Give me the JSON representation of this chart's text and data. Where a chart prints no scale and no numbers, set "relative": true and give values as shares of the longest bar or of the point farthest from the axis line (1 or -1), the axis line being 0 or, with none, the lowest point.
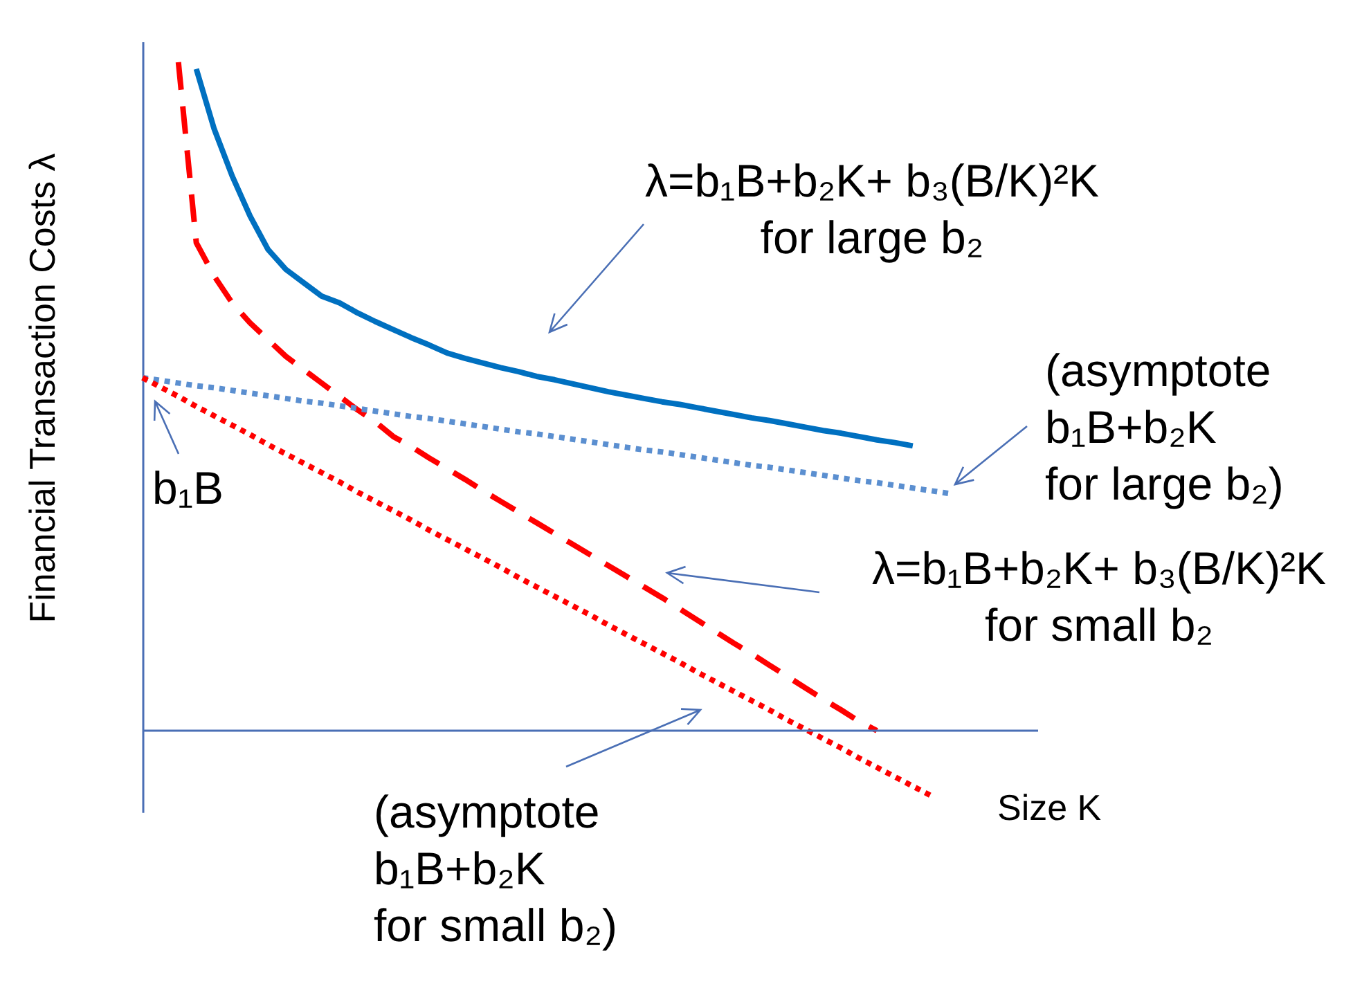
{
  "chart_data": {
    "type": "line",
    "relative": true,
    "ylabel": "Financial Transaction Costs λ",
    "xlabel": "Size K",
    "ref_lines": [
      {
        "axis": "y",
        "value": 0,
        "color": "#4a6fb5",
        "line_style": "solid"
      }
    ],
    "categories": [
      null,
      null,
      null,
      null,
      null,
      null,
      null,
      null,
      null,
      null,
      null,
      null,
      null,
      null,
      null,
      null,
      null,
      null,
      null,
      null,
      null,
      null,
      null,
      null,
      null,
      null,
      null,
      null,
      null,
      null,
      null,
      null,
      null,
      null,
      null,
      null,
      null,
      null,
      null,
      null,
      null,
      null,
      null,
      null,
      null,
      null,
      null,
      null,
      null,
      null,
      null
    ],
    "annotations": [
      "λ=b₁B+b₂K+ b₃(B/K)²K\nfor large b₂",
      "(asymptote\nb₁B+b₂K\nfor large b₂)",
      "b₁B",
      "λ=b₁B+b₂K+ b₃(B/K)²K\nfor small b₂",
      "(asymptote\nb₁B+b₂K\nfor small b₂)"
    ],
    "series": [
      {
        "color": "#0070c0",
        "line_style": "solid",
        "values": [
          null,
          null,
          null,
          0.99,
          0.9,
          0.83,
          0.77,
          0.72,
          0.69,
          0.67,
          0.65,
          0.64,
          0.625,
          0.612,
          0.6,
          0.588,
          0.577,
          0.565,
          0.557,
          0.55,
          0.543,
          0.537,
          0.53,
          0.525,
          0.519,
          0.513,
          0.507,
          0.502,
          0.497,
          0.492,
          0.488,
          0.483,
          0.478,
          0.473,
          0.468,
          0.464,
          0.459,
          0.454,
          0.449,
          0.445,
          0.44,
          0.435,
          0.431,
          0.426,
          null,
          null,
          null,
          null,
          null,
          null,
          null
        ]
      },
      {
        "color": "#ff0000",
        "line_style": "dashed",
        "values": [
          null,
          null,
          1.0,
          0.73,
          0.68,
          0.64,
          0.61,
          0.585,
          0.56,
          0.54,
          0.52,
          0.5,
          0.48,
          0.462,
          0.44,
          0.425,
          0.408,
          0.392,
          0.376,
          0.359,
          0.343,
          0.327,
          0.311,
          0.295,
          0.279,
          0.263,
          0.247,
          0.231,
          0.215,
          0.199,
          0.182,
          0.165,
          0.148,
          0.131,
          0.115,
          0.098,
          0.081,
          0.064,
          0.047,
          0.031,
          0.014,
          0,
          null,
          null,
          null,
          null,
          null,
          null,
          null,
          null,
          null
        ]
      },
      {
        "color": "#5b8fd0",
        "line_style": "dotted",
        "values": [
          0.528,
          0.524,
          0.52,
          0.516,
          0.513,
          0.509,
          0.505,
          0.501,
          0.497,
          0.493,
          0.49,
          0.486,
          0.482,
          0.478,
          0.474,
          0.47,
          0.467,
          0.463,
          0.459,
          0.455,
          0.451,
          0.447,
          0.444,
          0.44,
          0.436,
          0.432,
          0.428,
          0.424,
          0.42,
          0.417,
          0.413,
          0.409,
          0.405,
          0.401,
          0.397,
          0.394,
          0.39,
          0.386,
          0.382,
          0.378,
          0.374,
          0.371,
          0.367,
          0.363,
          0.359,
          0.355,
          null,
          null,
          null,
          null,
          null
        ]
      },
      {
        "color": "#ff0000",
        "line_style": "dotted",
        "values": [
          0.528,
          0.514,
          0.5,
          0.485,
          0.471,
          0.457,
          0.443,
          0.428,
          0.414,
          0.4,
          0.386,
          0.372,
          0.357,
          0.343,
          0.329,
          0.315,
          0.3,
          0.286,
          0.272,
          0.258,
          0.244,
          0.229,
          0.215,
          0.201,
          0.187,
          0.173,
          0.158,
          0.144,
          0.13,
          0.116,
          0.102,
          0.087,
          0.073,
          0.059,
          0.045,
          0.031,
          0.016,
          0.002,
          -0.012,
          -0.026,
          -0.041,
          -0.055,
          -0.069,
          -0.083,
          -0.097,
          null,
          null,
          null,
          null,
          null,
          null
        ]
      }
    ]
  }
}
